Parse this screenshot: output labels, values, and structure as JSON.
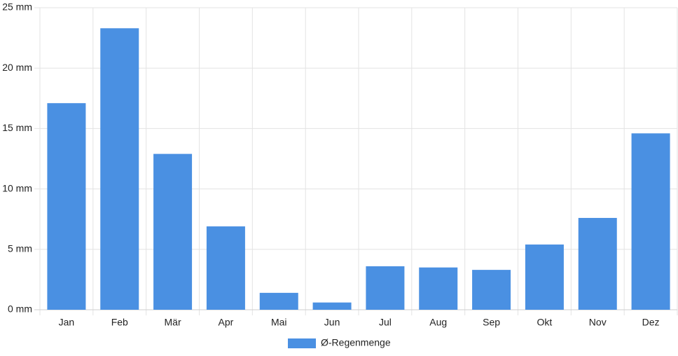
{
  "chart_data": {
    "type": "bar",
    "categories": [
      "Jan",
      "Feb",
      "Mär",
      "Apr",
      "Mai",
      "Jun",
      "Jul",
      "Aug",
      "Sep",
      "Okt",
      "Nov",
      "Dez"
    ],
    "series": [
      {
        "name": "Ø-Regenmenge",
        "color": "#4a90e2",
        "values": [
          17.1,
          23.3,
          12.9,
          6.9,
          1.4,
          0.6,
          3.6,
          3.5,
          3.3,
          5.4,
          7.6,
          14.6
        ]
      }
    ],
    "ylim": [
      0,
      25
    ],
    "yticks": [
      {
        "value": 0,
        "label": "0 mm"
      },
      {
        "value": 5,
        "label": "5 mm"
      },
      {
        "value": 10,
        "label": "10 mm"
      },
      {
        "value": 15,
        "label": "15 mm"
      },
      {
        "value": 20,
        "label": "20 mm"
      },
      {
        "value": 25,
        "label": "25 mm"
      }
    ],
    "grid": true,
    "legend": "bottom"
  }
}
